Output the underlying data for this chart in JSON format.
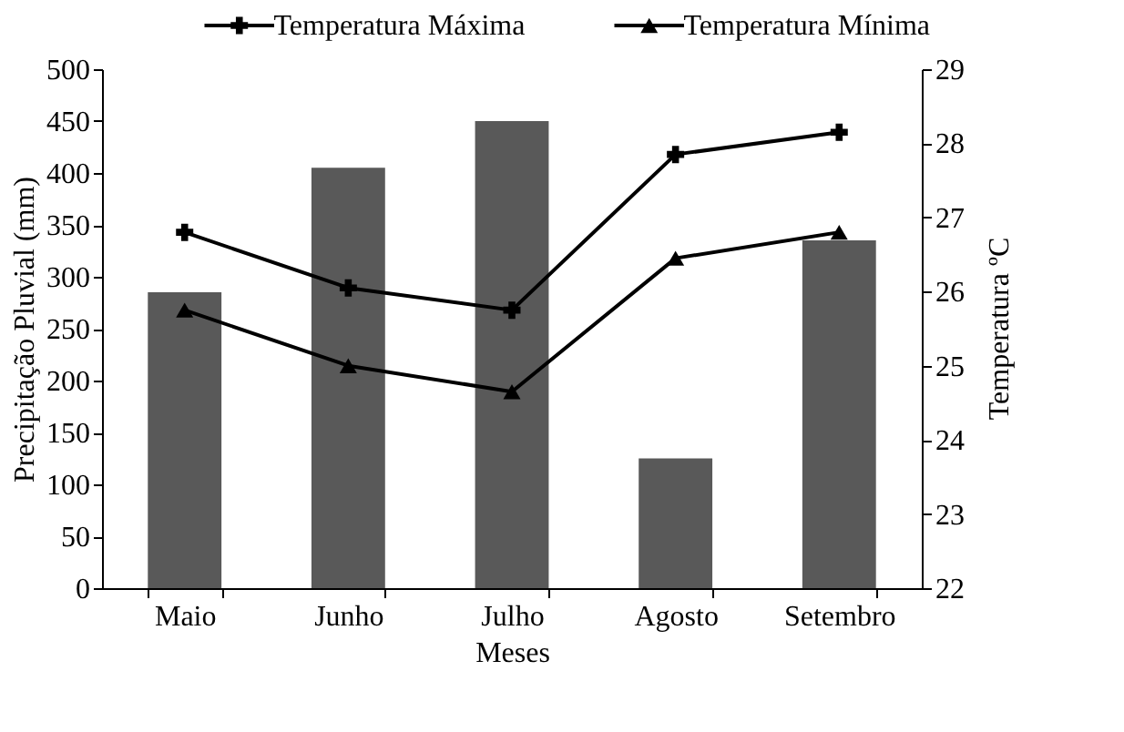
{
  "chart_data": {
    "type": "bar",
    "categories": [
      "Maio",
      "Junho",
      "Julho",
      "Agosto",
      "Setembro"
    ],
    "xlabel": "Meses",
    "ylabel": "Precipitação Pluvial (mm)",
    "y2label": "Temperatura ºC",
    "ylim": [
      0,
      500
    ],
    "yticks": [
      0,
      50,
      100,
      150,
      200,
      250,
      300,
      350,
      400,
      450,
      500
    ],
    "y2lim": [
      22,
      29
    ],
    "y2ticks": [
      22,
      23,
      24,
      25,
      26,
      27,
      28,
      29
    ],
    "legend": "top",
    "grid": false,
    "series": [
      {
        "color": "#595959",
        "values": [
          285,
          405,
          450,
          125,
          335
        ]
      },
      {
        "name": "Temperatura Máxima",
        "type": "line",
        "axis": "y2",
        "marker": "cross",
        "color": "#000000",
        "values": [
          26.8,
          26.05,
          25.75,
          27.85,
          28.15
        ]
      },
      {
        "name": "Temperatura Mínima",
        "type": "line",
        "axis": "y2",
        "marker": "triangle",
        "color": "#000000",
        "values": [
          25.75,
          25.0,
          24.65,
          26.45,
          26.8
        ]
      }
    ]
  }
}
